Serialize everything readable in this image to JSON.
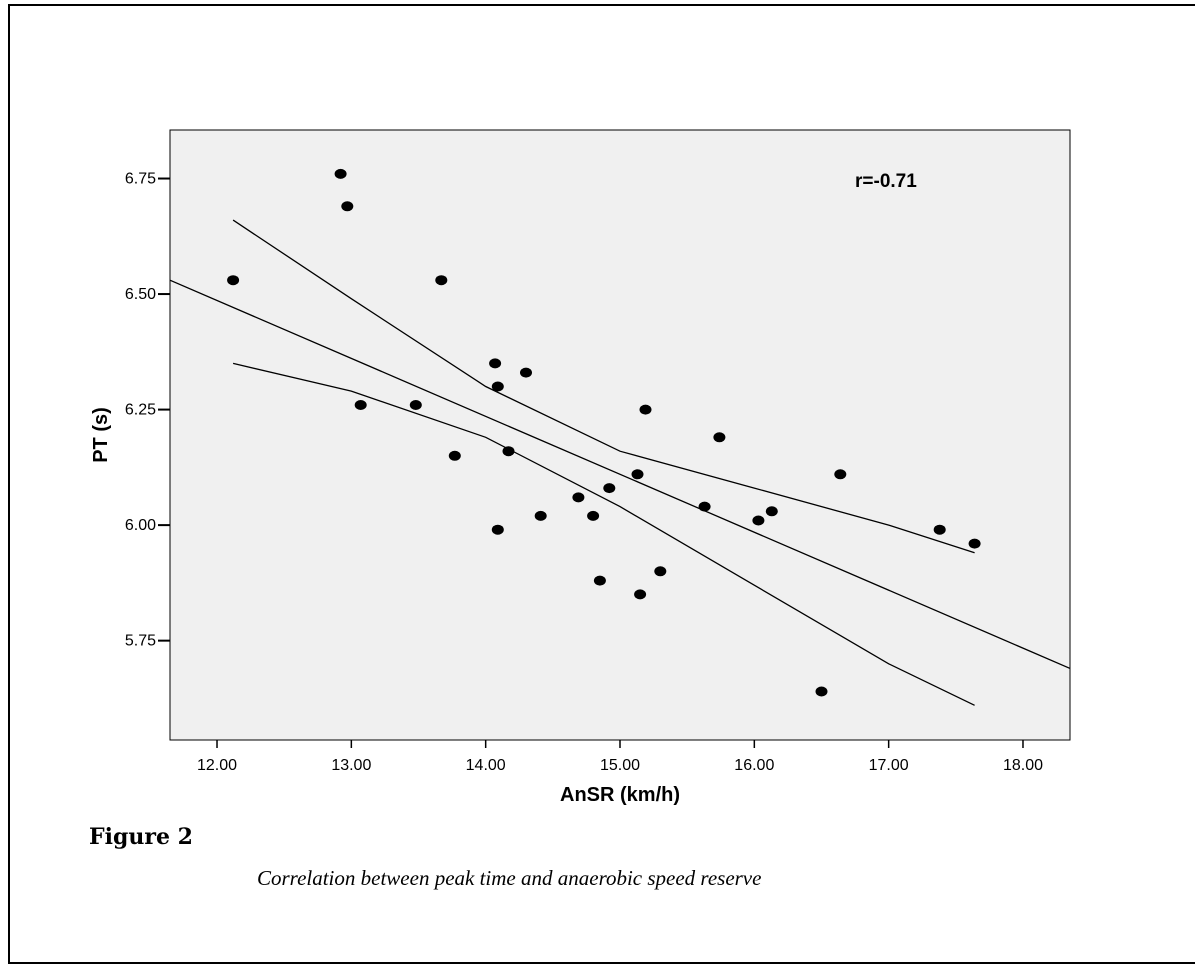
{
  "figure": {
    "label": "Figure 2",
    "caption": "Correlation between peak time and anaerobic speed reserve"
  },
  "chart_data": {
    "type": "scatter",
    "xlabel": "AnSR (km/h)",
    "ylabel": "PT (s)",
    "xlim": [
      11.65,
      18.35
    ],
    "ylim": [
      5.535,
      6.855
    ],
    "xticks": [
      "12.00",
      "13.00",
      "14.00",
      "15.00",
      "16.00",
      "17.00",
      "18.00"
    ],
    "yticks": [
      "5.75",
      "6.00",
      "6.25",
      "6.50",
      "6.75"
    ],
    "annotation": "r=-0.71",
    "grid": false,
    "plot_background": "#f0f0f0",
    "points": [
      {
        "x": 12.12,
        "y": 6.53
      },
      {
        "x": 12.92,
        "y": 6.76
      },
      {
        "x": 12.97,
        "y": 6.69
      },
      {
        "x": 13.07,
        "y": 6.26
      },
      {
        "x": 13.48,
        "y": 6.26
      },
      {
        "x": 13.67,
        "y": 6.53
      },
      {
        "x": 13.77,
        "y": 6.15
      },
      {
        "x": 14.07,
        "y": 6.35
      },
      {
        "x": 14.09,
        "y": 6.3
      },
      {
        "x": 14.09,
        "y": 5.99
      },
      {
        "x": 14.17,
        "y": 6.16
      },
      {
        "x": 14.3,
        "y": 6.33
      },
      {
        "x": 14.41,
        "y": 6.02
      },
      {
        "x": 14.69,
        "y": 6.06
      },
      {
        "x": 14.8,
        "y": 6.02
      },
      {
        "x": 14.85,
        "y": 5.88
      },
      {
        "x": 14.92,
        "y": 6.08
      },
      {
        "x": 15.13,
        "y": 6.11
      },
      {
        "x": 15.15,
        "y": 5.85
      },
      {
        "x": 15.19,
        "y": 6.25
      },
      {
        "x": 15.3,
        "y": 5.9
      },
      {
        "x": 15.63,
        "y": 6.04
      },
      {
        "x": 15.74,
        "y": 6.19
      },
      {
        "x": 16.03,
        "y": 6.01
      },
      {
        "x": 16.13,
        "y": 6.03
      },
      {
        "x": 16.5,
        "y": 5.64
      },
      {
        "x": 16.64,
        "y": 6.11
      },
      {
        "x": 17.38,
        "y": 5.99
      },
      {
        "x": 17.64,
        "y": 5.96
      }
    ],
    "fit_line": {
      "x": [
        11.65,
        18.35
      ],
      "y": [
        6.53,
        5.69
      ]
    },
    "ci_upper": {
      "x": [
        12.12,
        13.0,
        14.0,
        15.0,
        16.0,
        17.0,
        17.64
      ],
      "y": [
        6.66,
        6.49,
        6.3,
        6.16,
        6.08,
        6.0,
        5.94
      ]
    },
    "ci_lower": {
      "x": [
        12.12,
        13.0,
        14.0,
        15.0,
        16.0,
        17.0,
        17.64
      ],
      "y": [
        6.35,
        6.29,
        6.19,
        6.04,
        5.87,
        5.7,
        5.61
      ]
    }
  }
}
